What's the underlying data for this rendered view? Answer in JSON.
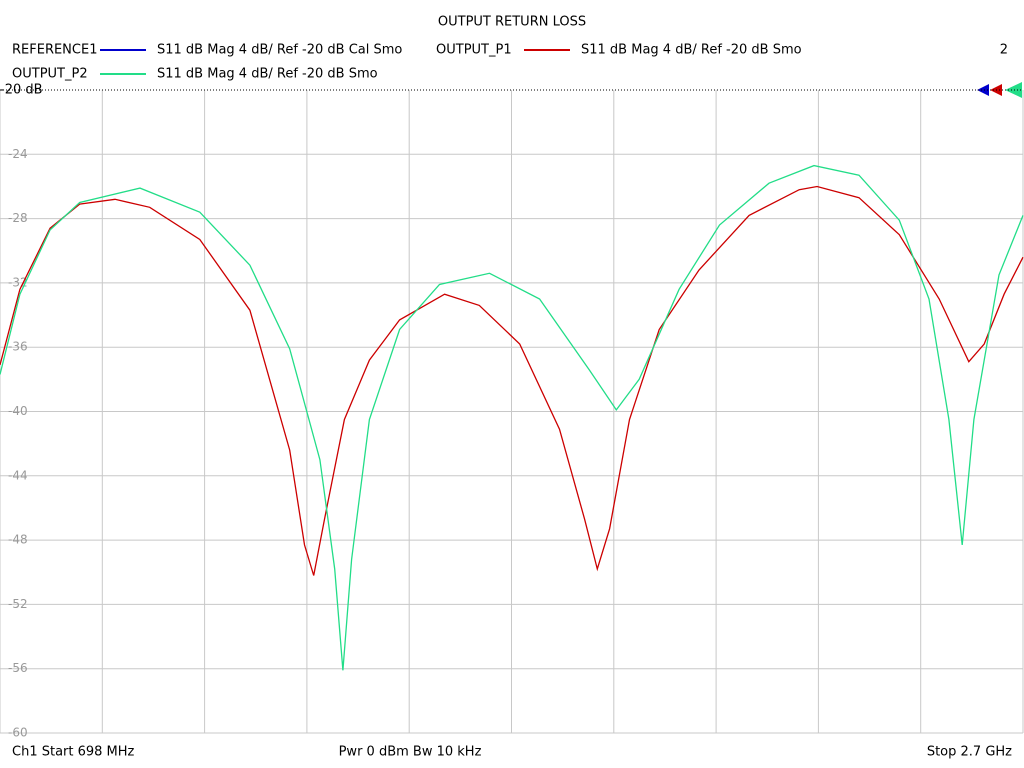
{
  "chart_data": {
    "type": "line",
    "title": "OUTPUT RETURN LOSS",
    "page_number": "2",
    "footer": [
      "Ch1  Start  698 MHz",
      "Pwr  0 dBm  Bw  10 kHz",
      "Stop  2.7 GHz"
    ],
    "xlim": [
      698,
      2700
    ],
    "xgrid": [
      698,
      898.2,
      1098.4,
      1298.6,
      1498.8,
      1699,
      1899.2,
      2099.4,
      2299.6,
      2499.8,
      2700
    ],
    "ylim": [
      -60,
      -20
    ],
    "yticks": [
      {
        "value": -20,
        "label": "-20 dB"
      },
      -24,
      -28,
      -32,
      -36,
      -40,
      -44,
      -48,
      -52,
      -56,
      -60
    ],
    "grid": true,
    "series": [
      {
        "name": "REFERENCE1",
        "description": "S11  dB Mag  4 dB/ Ref -20 dB  Cal Smo",
        "color": "#0000cc"
      },
      {
        "name": "OUTPUT_P1",
        "description": "S11  dB Mag  4 dB/ Ref -20 dB  Smo",
        "color": "#cc0000",
        "x": [
          698,
          737,
          796,
          854,
          923,
          991,
          1089,
          1187,
          1265,
          1294,
          1312,
          1333,
          1372,
          1421,
          1480,
          1568,
          1636,
          1715,
          1793,
          1842,
          1867,
          1891,
          1930,
          1988,
          2066,
          2164,
          2262,
          2297,
          2379,
          2458,
          2536,
          2594,
          2624,
          2663,
          2700
        ],
        "values": [
          -37.1,
          -32.4,
          -28.6,
          -27.1,
          -26.8,
          -27.3,
          -29.3,
          -33.7,
          -42.4,
          -48.3,
          -50.2,
          -46.7,
          -40.5,
          -36.8,
          -34.3,
          -32.7,
          -33.4,
          -35.8,
          -41.1,
          -46.7,
          -49.8,
          -47.3,
          -40.5,
          -34.9,
          -31.2,
          -27.8,
          -26.2,
          -26.0,
          -26.7,
          -29.0,
          -33.0,
          -36.9,
          -35.8,
          -32.7,
          -30.4
        ]
      },
      {
        "name": "OUTPUT_P2",
        "description": "S11  dB Mag  4 dB/ Ref -20 dB  Smo",
        "color": "#22dd88",
        "x": [
          698,
          737,
          796,
          854,
          972,
          1089,
          1187,
          1265,
          1324,
          1353,
          1369,
          1386,
          1421,
          1480,
          1558,
          1656,
          1754,
          1851,
          1904,
          1949,
          2027,
          2106,
          2203,
          2291,
          2379,
          2458,
          2516,
          2555,
          2581,
          2604,
          2653,
          2700
        ],
        "values": [
          -37.7,
          -32.7,
          -28.7,
          -27.0,
          -26.1,
          -27.6,
          -30.9,
          -36.1,
          -43.0,
          -49.8,
          -56.1,
          -49.2,
          -40.5,
          -34.9,
          -32.1,
          -31.4,
          -33.0,
          -37.4,
          -39.9,
          -38.0,
          -32.4,
          -28.4,
          -25.8,
          -24.7,
          -25.3,
          -28.1,
          -33.0,
          -40.5,
          -48.3,
          -40.5,
          -31.5,
          -27.8
        ]
      }
    ]
  }
}
